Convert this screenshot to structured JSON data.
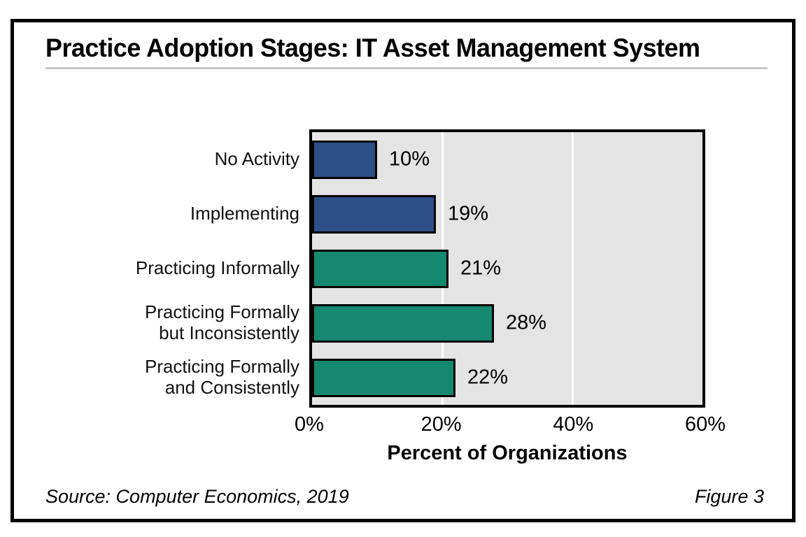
{
  "title": "Practice Adoption Stages: IT Asset Management System",
  "chart_data": {
    "type": "bar",
    "orientation": "horizontal",
    "title": "Practice Adoption Stages: IT Asset Management System",
    "categories": [
      "No Activity",
      "Implementing",
      "Practicing Informally",
      "Practicing Formally\nbut Inconsistently",
      "Practicing Formally\nand Consistently"
    ],
    "values": [
      10,
      19,
      21,
      28,
      22
    ],
    "value_labels": [
      "10%",
      "19%",
      "21%",
      "28%",
      "22%"
    ],
    "bar_colors": [
      "#2D4F87",
      "#2D4F87",
      "#15896F",
      "#15896F",
      "#15896F"
    ],
    "xlabel": "Percent of Organizations",
    "x_tick_labels": [
      "0%",
      "20%",
      "40%",
      "60%"
    ],
    "x_tick_values": [
      0,
      20,
      40,
      60
    ],
    "xlim": [
      0,
      60
    ],
    "gridline_values": [
      20,
      40
    ],
    "colors": {
      "plot_background": "#E4E4E4",
      "gridline": "#FFFFFF",
      "bar_border": "#000000",
      "blue_series": "#2D4F87",
      "green_series": "#15896F"
    },
    "grid": "vertical",
    "legend": "none"
  },
  "footer": {
    "source": "Source: Computer Economics, 2019",
    "figure_label": "Figure 3"
  }
}
